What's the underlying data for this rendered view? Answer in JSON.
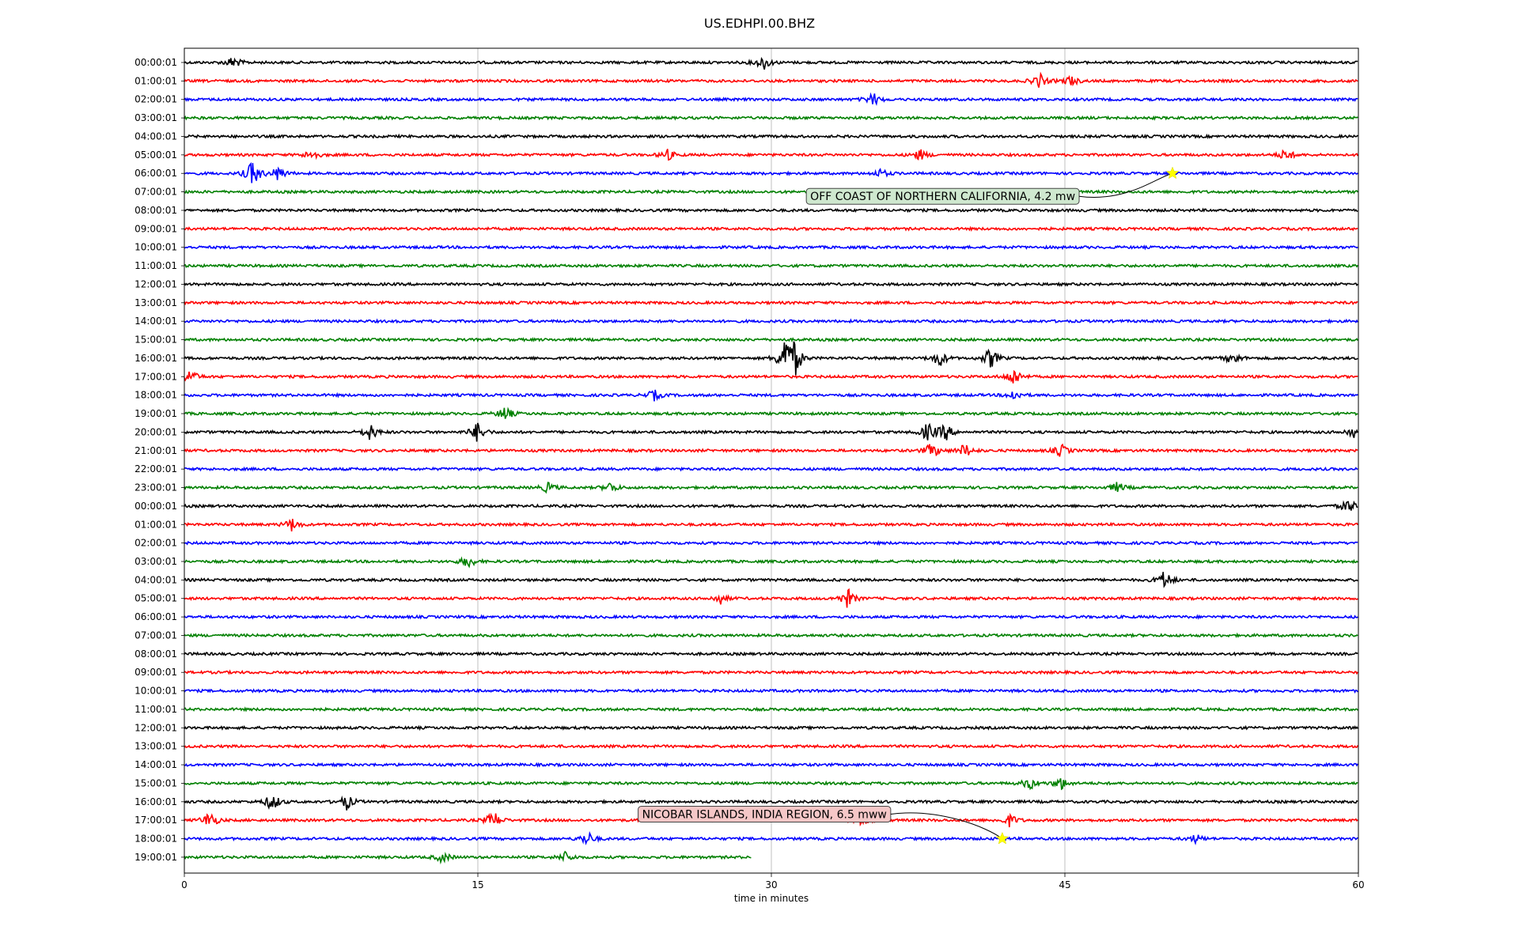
{
  "chart_data": {
    "type": "line",
    "title": "US.EDHPI.00.BHZ",
    "xlabel": "time in minutes",
    "ylabel": "",
    "xlim": [
      0,
      60
    ],
    "x_ticks": [
      0,
      15,
      30,
      45,
      60
    ],
    "grid": "vertical",
    "trace_colors": [
      "#000000",
      "#ff0000",
      "#0000ff",
      "#008000"
    ],
    "row_labels": [
      "00:00:01",
      "01:00:01",
      "02:00:01",
      "03:00:01",
      "04:00:01",
      "05:00:01",
      "06:00:01",
      "07:00:01",
      "08:00:01",
      "09:00:01",
      "10:00:01",
      "11:00:01",
      "12:00:01",
      "13:00:01",
      "14:00:01",
      "15:00:01",
      "16:00:01",
      "17:00:01",
      "18:00:01",
      "19:00:01",
      "20:00:01",
      "21:00:01",
      "22:00:01",
      "23:00:01",
      "00:00:01",
      "01:00:01",
      "02:00:01",
      "03:00:01",
      "04:00:01",
      "05:00:01",
      "06:00:01",
      "07:00:01",
      "08:00:01",
      "09:00:01",
      "10:00:01",
      "11:00:01",
      "12:00:01",
      "13:00:01",
      "14:00:01",
      "15:00:01",
      "16:00:01",
      "17:00:01",
      "18:00:01",
      "19:00:01"
    ],
    "last_row_end_minute": 29,
    "events": [
      {
        "row": 0,
        "minute": 2.5,
        "amp": 0.6
      },
      {
        "row": 0,
        "minute": 29.6,
        "amp": 0.7
      },
      {
        "row": 1,
        "minute": 43.7,
        "amp": 0.7
      },
      {
        "row": 1,
        "minute": 45.3,
        "amp": 0.5
      },
      {
        "row": 2,
        "minute": 35.2,
        "amp": 0.6
      },
      {
        "row": 5,
        "minute": 6.5,
        "amp": 0.5
      },
      {
        "row": 5,
        "minute": 24.7,
        "amp": 0.5
      },
      {
        "row": 5,
        "minute": 37.6,
        "amp": 0.5
      },
      {
        "row": 5,
        "minute": 56.3,
        "amp": 0.6
      },
      {
        "row": 6,
        "minute": 3.5,
        "amp": 1.3
      },
      {
        "row": 6,
        "minute": 4.8,
        "amp": 0.7
      },
      {
        "row": 6,
        "minute": 35.6,
        "amp": 0.4
      },
      {
        "row": 16,
        "minute": 30.7,
        "amp": 2.0
      },
      {
        "row": 16,
        "minute": 31.2,
        "amp": 1.5
      },
      {
        "row": 16,
        "minute": 38.6,
        "amp": 0.8
      },
      {
        "row": 16,
        "minute": 41.2,
        "amp": 1.0
      },
      {
        "row": 16,
        "minute": 53.6,
        "amp": 0.6
      },
      {
        "row": 17,
        "minute": 0.3,
        "amp": 0.7
      },
      {
        "row": 17,
        "minute": 42.4,
        "amp": 0.9
      },
      {
        "row": 18,
        "minute": 24.0,
        "amp": 0.5
      },
      {
        "row": 18,
        "minute": 42.4,
        "amp": 0.5
      },
      {
        "row": 19,
        "minute": 16.4,
        "amp": 0.7
      },
      {
        "row": 20,
        "minute": 9.5,
        "amp": 0.8
      },
      {
        "row": 20,
        "minute": 15.0,
        "amp": 1.0
      },
      {
        "row": 20,
        "minute": 38.0,
        "amp": 0.9
      },
      {
        "row": 20,
        "minute": 38.9,
        "amp": 0.8
      },
      {
        "row": 20,
        "minute": 59.7,
        "amp": 0.6
      },
      {
        "row": 21,
        "minute": 38.2,
        "amp": 0.8
      },
      {
        "row": 21,
        "minute": 39.9,
        "amp": 0.7
      },
      {
        "row": 21,
        "minute": 44.8,
        "amp": 0.6
      },
      {
        "row": 23,
        "minute": 18.6,
        "amp": 0.5
      },
      {
        "row": 23,
        "minute": 21.8,
        "amp": 0.5
      },
      {
        "row": 23,
        "minute": 47.7,
        "amp": 0.5
      },
      {
        "row": 24,
        "minute": 59.5,
        "amp": 0.7
      },
      {
        "row": 25,
        "minute": 5.5,
        "amp": 0.6
      },
      {
        "row": 27,
        "minute": 14.5,
        "amp": 0.6
      },
      {
        "row": 28,
        "minute": 50.1,
        "amp": 0.9
      },
      {
        "row": 29,
        "minute": 33.9,
        "amp": 0.9
      },
      {
        "row": 29,
        "minute": 27.4,
        "amp": 0.5
      },
      {
        "row": 39,
        "minute": 43.2,
        "amp": 0.6
      },
      {
        "row": 39,
        "minute": 44.8,
        "amp": 0.6
      },
      {
        "row": 40,
        "minute": 4.5,
        "amp": 0.9
      },
      {
        "row": 40,
        "minute": 8.3,
        "amp": 0.7
      },
      {
        "row": 41,
        "minute": 1.3,
        "amp": 0.9
      },
      {
        "row": 41,
        "minute": 15.8,
        "amp": 0.9
      },
      {
        "row": 41,
        "minute": 34.6,
        "amp": 0.8
      },
      {
        "row": 41,
        "minute": 42.2,
        "amp": 0.6
      },
      {
        "row": 42,
        "minute": 20.6,
        "amp": 0.7
      },
      {
        "row": 42,
        "minute": 51.7,
        "amp": 0.4
      },
      {
        "row": 43,
        "minute": 13.2,
        "amp": 0.5
      },
      {
        "row": 43,
        "minute": 19.5,
        "amp": 0.5
      }
    ],
    "annotations": [
      {
        "text": "OFF COAST OF NORTHERN CALIFORNIA, 4.2 mw",
        "row": 6,
        "minute": 50.5,
        "box_color": "#cfe8cf",
        "marker_color": "#ffff00"
      },
      {
        "text": "NICOBAR ISLANDS, INDIA REGION, 6.5 mww",
        "row": 42,
        "minute": 41.8,
        "box_color": "#f5c7c7",
        "marker_color": "#ffff00"
      }
    ]
  }
}
